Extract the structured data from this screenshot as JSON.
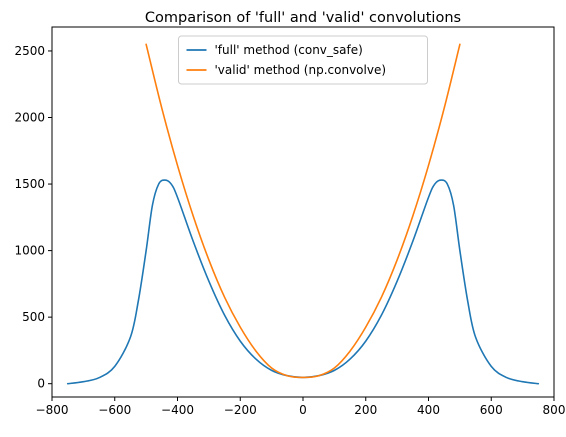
{
  "chart_data": {
    "type": "line",
    "title": "Comparison of 'full' and 'valid' convolutions",
    "xlabel": "",
    "ylabel": "",
    "xlim": [
      -800,
      800
    ],
    "ylim": [
      -100,
      2680
    ],
    "x_ticks": [
      -800,
      -600,
      -400,
      -200,
      0,
      200,
      400,
      600,
      800
    ],
    "x_tick_labels": [
      "−800",
      "−600",
      "−400",
      "−200",
      "0",
      "200",
      "400",
      "600",
      "800"
    ],
    "y_ticks": [
      0,
      500,
      1000,
      1500,
      2000,
      2500
    ],
    "y_tick_labels": [
      "0",
      "500",
      "1000",
      "1500",
      "2000",
      "2500"
    ],
    "grid": false,
    "legend": "upper center",
    "series": [
      {
        "name": "'full' method (conv_safe)",
        "color": "#1f77b4",
        "x": [
          -750,
          -700,
          -650,
          -600,
          -550,
          -525,
          -500,
          -480,
          -460,
          -440,
          -420,
          -400,
          -350,
          -300,
          -250,
          -200,
          -150,
          -100,
          -50,
          0,
          50,
          100,
          150,
          200,
          250,
          300,
          350,
          400,
          420,
          440,
          460,
          480,
          500,
          525,
          550,
          600,
          650,
          700,
          750
        ],
        "y": [
          0,
          15,
          45,
          130,
          350,
          620,
          1000,
          1340,
          1500,
          1530,
          1500,
          1400,
          1070,
          770,
          515,
          320,
          185,
          100,
          60,
          47,
          60,
          100,
          185,
          320,
          515,
          770,
          1070,
          1400,
          1500,
          1530,
          1500,
          1340,
          1000,
          620,
          350,
          130,
          45,
          15,
          0
        ]
      },
      {
        "name": "'valid' method (np.convolve)",
        "color": "#ff7f0e",
        "x": [
          -500,
          -450,
          -400,
          -350,
          -300,
          -250,
          -200,
          -150,
          -100,
          -50,
          0,
          50,
          100,
          150,
          200,
          250,
          300,
          350,
          400,
          450,
          500
        ],
        "y": [
          2550,
          2070,
          1640,
          1260,
          930,
          650,
          425,
          245,
          118,
          60,
          47,
          60,
          118,
          245,
          425,
          650,
          930,
          1260,
          1640,
          2070,
          2550
        ]
      }
    ]
  }
}
